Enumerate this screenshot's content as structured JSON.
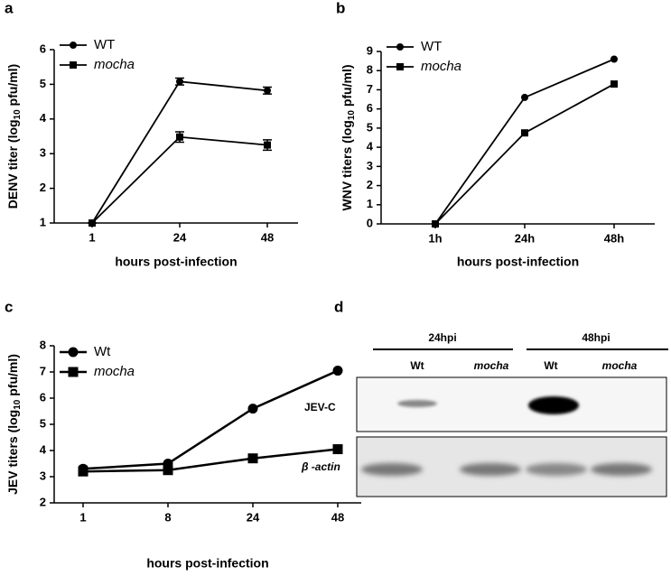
{
  "chart_data": [
    {
      "type": "line",
      "panel": "a",
      "categories": [
        "1",
        "24",
        "48"
      ],
      "ylabel": [
        "DENV titer (log",
        "10",
        " pfu/ml)"
      ],
      "xlabel": "hours post-infection",
      "ylim": [
        1,
        6
      ],
      "yticks": [
        1,
        2,
        3,
        4,
        5,
        6
      ],
      "legend": "upper left",
      "series": [
        {
          "name": "WT",
          "color": "#000000",
          "marker": "circle",
          "values": [
            1,
            5.08,
            4.82
          ],
          "errors": [
            0,
            0.1,
            0.1
          ]
        },
        {
          "name": "mocha",
          "color": "#000000",
          "marker": "square",
          "values": [
            1,
            3.48,
            3.25
          ],
          "errors": [
            0,
            0.15,
            0.15
          ]
        }
      ]
    },
    {
      "type": "line",
      "panel": "b",
      "categories": [
        "1h",
        "24h",
        "48h"
      ],
      "ylabel": [
        "WNV titers (log",
        "10",
        " pfu/ml)"
      ],
      "xlabel": "hours post-infection",
      "ylim": [
        0,
        9
      ],
      "yticks": [
        0,
        1,
        2,
        3,
        4,
        5,
        6,
        7,
        8,
        9
      ],
      "legend": "upper left",
      "series": [
        {
          "name": "WT",
          "color": "#000000",
          "marker": "circle",
          "values": [
            0,
            6.6,
            8.6
          ]
        },
        {
          "name": "mocha",
          "color": "#000000",
          "marker": "square",
          "values": [
            0,
            4.75,
            7.3
          ]
        }
      ]
    },
    {
      "type": "line",
      "panel": "c",
      "categories": [
        "1",
        "8",
        "24",
        "48"
      ],
      "ylabel": [
        "JEV titers (log",
        "10",
        " pfu/ml)"
      ],
      "xlabel": "hours post-infection",
      "ylim": [
        2,
        8
      ],
      "yticks": [
        2,
        3,
        4,
        5,
        6,
        7,
        8
      ],
      "legend": "upper left",
      "series": [
        {
          "name": "Wt",
          "color": "#000000",
          "marker": "circle",
          "values": [
            3.3,
            3.5,
            5.6,
            7.05
          ],
          "errors": [
            0.1,
            0,
            0,
            0
          ]
        },
        {
          "name": "mocha",
          "color": "#000000",
          "marker": "square",
          "values": [
            3.2,
            3.25,
            3.7,
            4.05
          ],
          "errors": [
            0.15,
            0,
            0,
            0
          ]
        }
      ]
    }
  ],
  "blot": {
    "panel": "d",
    "groups": [
      "24hpi",
      "48hpi"
    ],
    "lanes": [
      "Wt",
      "mocha",
      "Wt",
      "mocha"
    ],
    "rows": [
      "JEV-C",
      "β -actin"
    ]
  }
}
